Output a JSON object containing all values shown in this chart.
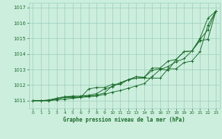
{
  "title": "Graphe pression niveau de la mer (hPa)",
  "bg_color": "#cceedd",
  "grid_color": "#99ccbb",
  "line_color": "#1a6b2a",
  "text_color": "#1a6b2a",
  "xlim": [
    -0.5,
    23.5
  ],
  "ylim": [
    1010.5,
    1017.3
  ],
  "yticks": [
    1011,
    1012,
    1013,
    1014,
    1015,
    1016,
    1017
  ],
  "xticks": [
    0,
    1,
    2,
    3,
    4,
    5,
    6,
    7,
    8,
    9,
    10,
    11,
    12,
    13,
    14,
    15,
    16,
    17,
    18,
    19,
    20,
    21,
    22,
    23
  ],
  "series": [
    [
      1011.0,
      1011.0,
      1011.0,
      1011.05,
      1011.1,
      1011.15,
      1011.2,
      1011.25,
      1011.3,
      1011.4,
      1011.55,
      1011.65,
      1011.8,
      1011.95,
      1012.1,
      1012.55,
      1013.0,
      1013.2,
      1013.5,
      1013.7,
      1014.2,
      1015.0,
      1016.3,
      1016.75
    ],
    [
      1011.0,
      1011.0,
      1011.0,
      1011.15,
      1011.25,
      1011.3,
      1011.3,
      1011.35,
      1011.45,
      1011.75,
      1011.9,
      1012.15,
      1012.35,
      1012.45,
      1012.5,
      1013.1,
      1013.1,
      1013.55,
      1013.65,
      1014.15,
      1014.2,
      1014.95,
      1015.55,
      1016.75
    ],
    [
      1011.0,
      1011.0,
      1011.0,
      1011.1,
      1011.2,
      1011.2,
      1011.2,
      1011.75,
      1011.85,
      1011.85,
      1012.05,
      1012.05,
      1012.35,
      1012.55,
      1012.5,
      1012.95,
      1013.05,
      1012.95,
      1013.65,
      1014.15,
      1014.2,
      1014.85,
      1014.95,
      1016.75
    ],
    [
      1011.0,
      1011.0,
      1011.05,
      1011.15,
      1011.25,
      1011.25,
      1011.25,
      1011.3,
      1011.35,
      1011.5,
      1011.95,
      1012.15,
      1012.35,
      1012.45,
      1012.45,
      1012.45,
      1012.45,
      1013.05,
      1013.05,
      1013.45,
      1013.55,
      1014.15,
      1015.85,
      1016.75
    ]
  ]
}
